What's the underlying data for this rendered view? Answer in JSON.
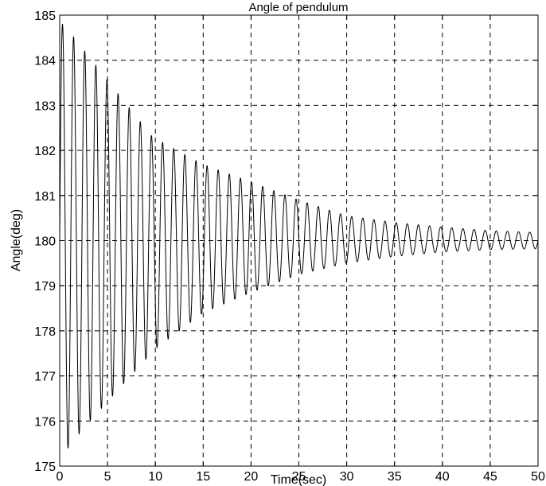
{
  "chart_data": {
    "type": "line",
    "title": "Angle of pendulum",
    "xlabel": "Time(sec)",
    "ylabel": "Angle(deg)",
    "xlim": [
      0,
      50
    ],
    "ylim": [
      175,
      185
    ],
    "xticks": [
      0,
      5,
      10,
      15,
      20,
      25,
      30,
      35,
      40,
      45,
      50
    ],
    "yticks": [
      175,
      176,
      177,
      178,
      179,
      180,
      181,
      182,
      183,
      184,
      185
    ],
    "grid": true,
    "grid_style": "dashed",
    "line_color": "#000000",
    "series": [
      {
        "oscillation": {
          "equilibrium": 180.0,
          "initial_value": 180.0,
          "peak_envelope": [
            {
              "t": 0.4,
              "deg": 184.8
            },
            {
              "t": 1.9,
              "deg": 184.4
            },
            {
              "t": 3.0,
              "deg": 184.1
            },
            {
              "t": 5.2,
              "deg": 183.5
            },
            {
              "t": 9.7,
              "deg": 182.3
            },
            {
              "t": 14.9,
              "deg": 181.7
            },
            {
              "t": 20.0,
              "deg": 181.3
            },
            {
              "t": 25.0,
              "deg": 180.9
            },
            {
              "t": 30.0,
              "deg": 180.55
            },
            {
              "t": 35.0,
              "deg": 180.4
            },
            {
              "t": 40.0,
              "deg": 180.3
            },
            {
              "t": 45.0,
              "deg": 180.22
            },
            {
              "t": 50.0,
              "deg": 180.18
            }
          ],
          "trough_envelope": [
            {
              "t": 1.1,
              "deg": 175.4
            },
            {
              "t": 2.3,
              "deg": 175.8
            },
            {
              "t": 3.6,
              "deg": 176.1
            },
            {
              "t": 5.3,
              "deg": 176.5
            },
            {
              "t": 10.0,
              "deg": 177.6
            },
            {
              "t": 15.0,
              "deg": 178.4
            },
            {
              "t": 20.0,
              "deg": 178.85
            },
            {
              "t": 25.0,
              "deg": 179.25
            },
            {
              "t": 30.0,
              "deg": 179.5
            },
            {
              "t": 35.0,
              "deg": 179.65
            },
            {
              "t": 40.0,
              "deg": 179.75
            },
            {
              "t": 45.0,
              "deg": 179.8
            },
            {
              "t": 50.0,
              "deg": 179.82
            }
          ],
          "cycles_0_to_50s": 43
        }
      }
    ]
  }
}
